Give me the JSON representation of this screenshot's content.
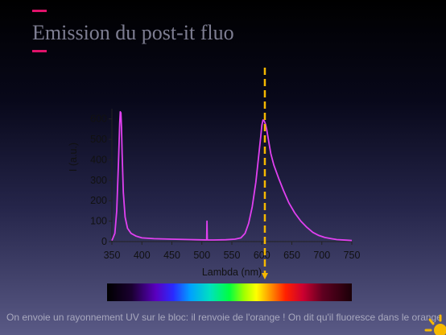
{
  "slide": {
    "title": "Emission du post-it fluo",
    "caption": "On envoie un rayonnement UV sur le bloc: il renvoie de l'orange ! On dit qu'il fluoresce dans le orange"
  },
  "colors": {
    "accent": "#e0126a",
    "series": "#e040f0",
    "marker": "#f5b800"
  },
  "chart_data": {
    "type": "line",
    "title": "",
    "xlabel": "Lambda (nm)",
    "ylabel": "I (a.u.)",
    "xlim": [
      350,
      750
    ],
    "ylim": [
      0,
      650
    ],
    "xticks": [
      350,
      400,
      450,
      500,
      550,
      600,
      650,
      700,
      750
    ],
    "yticks": [
      0,
      100,
      200,
      300,
      400,
      500,
      600
    ],
    "series": [
      {
        "x": [
          350,
          355,
          358,
          361,
          363,
          364,
          365,
          366,
          367,
          369,
          372,
          376,
          382,
          390,
          400,
          420,
          450,
          480,
          490,
          508,
          508.5,
          509,
          509.5,
          520,
          540,
          555,
          565,
          572,
          578,
          584,
          590,
          594,
          598,
          600,
          602,
          604,
          606,
          608,
          610,
          612,
          615,
          620,
          628,
          636,
          645,
          655,
          665,
          675,
          685,
          695,
          705,
          715,
          725,
          740,
          750
        ],
        "y": [
          5,
          40,
          150,
          390,
          580,
          635,
          630,
          560,
          430,
          240,
          120,
          65,
          40,
          27,
          18,
          14,
          12,
          10,
          9,
          8,
          100,
          9,
          8,
          8,
          9,
          12,
          18,
          40,
          90,
          170,
          290,
          400,
          510,
          570,
          595,
          590,
          575,
          550,
          515,
          480,
          430,
          375,
          310,
          250,
          190,
          140,
          100,
          70,
          45,
          30,
          20,
          15,
          10,
          7,
          5
        ]
      }
    ],
    "annotations": [
      {
        "type": "vertical-line",
        "x": 605
      },
      {
        "type": "spectrum-bar",
        "xlim": [
          350,
          750
        ]
      }
    ],
    "grid": false
  }
}
